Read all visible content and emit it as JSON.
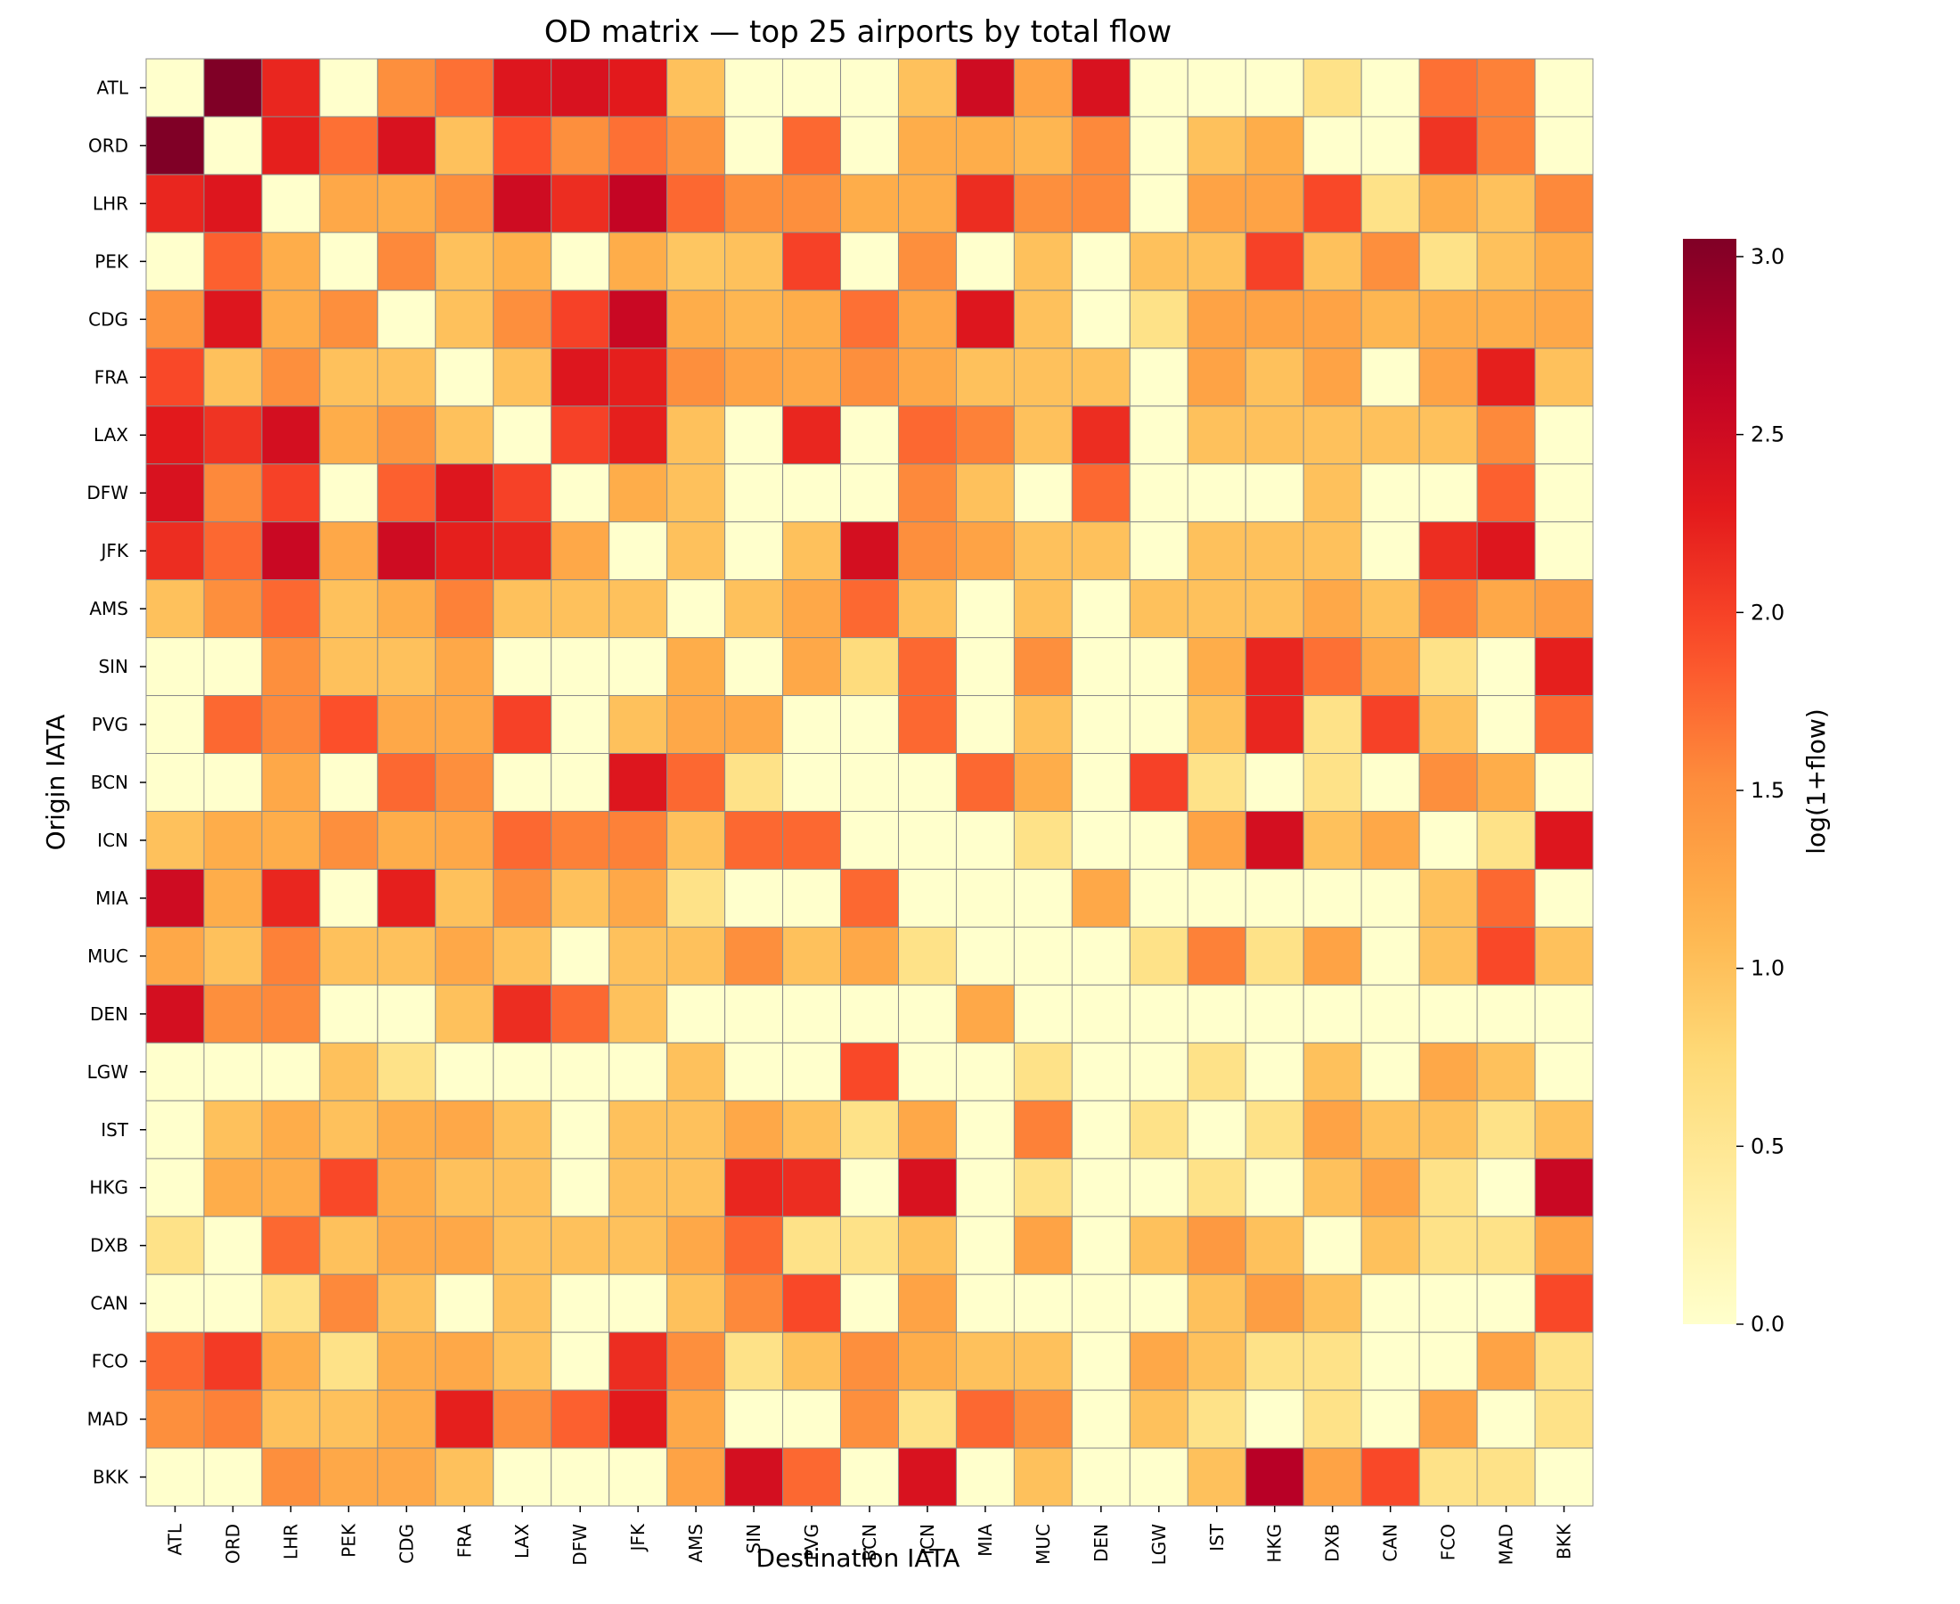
{
  "chart_data": {
    "type": "heatmap",
    "title": "OD matrix — top 25 airports by total flow",
    "xlabel": "Destination IATA",
    "ylabel": "Origin IATA",
    "colorbar": {
      "label": "log(1+flow)",
      "range": [
        0,
        3.05
      ],
      "ticks": [
        "0.0",
        "0.5",
        "1.0",
        "1.5",
        "2.0",
        "2.5",
        "3.0"
      ],
      "colormap": "YlOrRd"
    },
    "x_categories": [
      "ATL",
      "ORD",
      "LHR",
      "PEK",
      "CDG",
      "FRA",
      "LAX",
      "DFW",
      "JFK",
      "AMS",
      "SIN",
      "PVG",
      "BCN",
      "ICN",
      "MIA",
      "MUC",
      "DEN",
      "LGW",
      "IST",
      "HKG",
      "DXB",
      "CAN",
      "FCO",
      "MAD",
      "BKK"
    ],
    "y_categories": [
      "ATL",
      "ORD",
      "LHR",
      "PEK",
      "CDG",
      "FRA",
      "LAX",
      "DFW",
      "JFK",
      "AMS",
      "SIN",
      "PVG",
      "BCN",
      "ICN",
      "MIA",
      "MUC",
      "DEN",
      "LGW",
      "IST",
      "HKG",
      "DXB",
      "CAN",
      "FCO",
      "MAD",
      "BKK"
    ],
    "values": [
      [
        0.0,
        3.05,
        2.2,
        0.0,
        1.5,
        1.7,
        2.35,
        2.4,
        2.3,
        1.0,
        0.0,
        0.0,
        0.0,
        1.0,
        2.5,
        1.3,
        2.4,
        0.0,
        0.0,
        0.0,
        0.6,
        0.0,
        1.7,
        1.6,
        0.0
      ],
      [
        3.05,
        0.0,
        2.25,
        1.7,
        2.4,
        1.0,
        1.9,
        1.5,
        1.7,
        1.45,
        0.0,
        1.75,
        0.0,
        1.2,
        1.2,
        1.1,
        1.55,
        0.0,
        1.0,
        1.2,
        0.0,
        0.0,
        2.1,
        1.6,
        0.0
      ],
      [
        2.2,
        2.35,
        0.0,
        1.25,
        1.2,
        1.5,
        2.5,
        2.15,
        2.6,
        1.75,
        1.5,
        1.5,
        1.2,
        1.2,
        2.15,
        1.5,
        1.55,
        0.0,
        1.3,
        1.3,
        1.95,
        0.6,
        1.2,
        1.0,
        1.55
      ],
      [
        0.0,
        1.8,
        1.2,
        0.0,
        1.55,
        1.0,
        1.15,
        0.0,
        1.2,
        0.95,
        1.0,
        2.0,
        0.0,
        1.5,
        0.0,
        1.0,
        0.0,
        1.0,
        1.0,
        2.0,
        1.0,
        1.5,
        0.6,
        1.0,
        1.2
      ],
      [
        1.45,
        2.35,
        1.2,
        1.5,
        0.0,
        1.0,
        1.5,
        2.0,
        2.55,
        1.2,
        1.1,
        1.2,
        1.7,
        1.25,
        2.35,
        1.0,
        0.0,
        0.6,
        1.3,
        1.3,
        1.3,
        1.1,
        1.2,
        1.2,
        1.25
      ],
      [
        1.95,
        1.0,
        1.5,
        1.0,
        1.0,
        0.0,
        1.0,
        2.35,
        2.25,
        1.5,
        1.3,
        1.25,
        1.5,
        1.25,
        1.0,
        1.0,
        1.0,
        0.0,
        1.3,
        1.0,
        1.3,
        0.0,
        1.3,
        2.25,
        1.0
      ],
      [
        2.3,
        2.1,
        2.45,
        1.2,
        1.45,
        1.0,
        0.0,
        2.0,
        2.25,
        1.0,
        0.0,
        2.2,
        0.0,
        1.75,
        1.6,
        1.0,
        2.15,
        0.0,
        1.0,
        1.0,
        1.0,
        1.0,
        1.0,
        1.55,
        0.0
      ],
      [
        2.4,
        1.55,
        2.0,
        0.0,
        1.8,
        2.35,
        2.0,
        0.0,
        1.2,
        1.0,
        0.0,
        0.0,
        0.0,
        1.55,
        1.0,
        0.0,
        1.75,
        0.0,
        0.0,
        0.0,
        1.0,
        0.0,
        0.0,
        1.8,
        0.0
      ],
      [
        2.15,
        1.75,
        2.55,
        1.25,
        2.5,
        2.25,
        2.2,
        1.25,
        0.0,
        1.0,
        0.0,
        1.0,
        2.45,
        1.5,
        1.3,
        1.0,
        1.0,
        0.0,
        1.0,
        1.0,
        1.0,
        0.0,
        2.15,
        2.35,
        0.0
      ],
      [
        1.0,
        1.5,
        1.75,
        1.0,
        1.2,
        1.6,
        1.0,
        1.0,
        1.0,
        0.0,
        1.0,
        1.25,
        1.75,
        1.0,
        0.0,
        1.0,
        0.0,
        1.0,
        1.0,
        1.0,
        1.25,
        1.0,
        1.6,
        1.25,
        1.35
      ],
      [
        0.0,
        0.0,
        1.5,
        1.0,
        1.0,
        1.25,
        0.0,
        0.0,
        0.0,
        1.2,
        0.0,
        1.25,
        0.7,
        1.75,
        0.0,
        1.5,
        0.0,
        0.0,
        1.2,
        2.2,
        1.7,
        1.25,
        0.6,
        0.0,
        2.25
      ],
      [
        0.0,
        1.75,
        1.55,
        1.9,
        1.25,
        1.25,
        2.0,
        0.0,
        1.0,
        1.25,
        1.25,
        0.0,
        0.0,
        1.75,
        0.0,
        1.0,
        0.0,
        0.0,
        1.0,
        2.2,
        0.6,
        2.0,
        1.0,
        0.0,
        1.75
      ],
      [
        0.0,
        0.0,
        1.25,
        0.0,
        1.75,
        1.5,
        0.0,
        0.0,
        2.35,
        1.75,
        0.6,
        0.0,
        0.0,
        0.0,
        1.75,
        1.2,
        0.0,
        2.0,
        0.6,
        0.0,
        0.6,
        0.0,
        1.5,
        1.2,
        0.0
      ],
      [
        1.0,
        1.2,
        1.2,
        1.5,
        1.2,
        1.25,
        1.75,
        1.6,
        1.6,
        1.0,
        1.75,
        1.75,
        0.0,
        0.0,
        0.0,
        0.6,
        0.0,
        0.0,
        1.3,
        2.45,
        1.0,
        1.25,
        0.0,
        0.6,
        2.35
      ],
      [
        2.5,
        1.2,
        2.2,
        0.0,
        2.25,
        1.0,
        1.5,
        1.0,
        1.25,
        0.6,
        0.0,
        0.0,
        1.75,
        0.0,
        0.0,
        0.0,
        1.25,
        0.0,
        0.0,
        0.0,
        0.0,
        0.0,
        1.0,
        1.75,
        0.0
      ],
      [
        1.25,
        1.0,
        1.6,
        1.0,
        1.0,
        1.25,
        1.0,
        0.0,
        1.0,
        1.0,
        1.5,
        1.0,
        1.25,
        0.6,
        0.0,
        0.0,
        0.0,
        0.6,
        1.6,
        0.6,
        1.3,
        0.0,
        1.0,
        1.95,
        1.0
      ],
      [
        2.45,
        1.5,
        1.55,
        0.0,
        0.0,
        1.0,
        2.15,
        1.75,
        1.0,
        0.0,
        0.0,
        0.0,
        0.0,
        0.0,
        1.25,
        0.0,
        0.0,
        0.0,
        0.0,
        0.0,
        0.0,
        0.0,
        0.0,
        0.0,
        0.0
      ],
      [
        0.0,
        0.0,
        0.0,
        1.0,
        0.6,
        0.0,
        0.0,
        0.0,
        0.0,
        1.0,
        0.0,
        0.0,
        1.95,
        0.0,
        0.0,
        0.6,
        0.0,
        0.0,
        0.6,
        0.0,
        1.0,
        0.0,
        1.25,
        1.0,
        0.0
      ],
      [
        0.0,
        1.0,
        1.2,
        1.0,
        1.2,
        1.25,
        1.0,
        0.0,
        1.0,
        1.0,
        1.25,
        1.0,
        0.6,
        1.25,
        0.0,
        1.6,
        0.0,
        0.6,
        0.0,
        0.6,
        1.3,
        1.0,
        1.0,
        0.6,
        1.0
      ],
      [
        0.0,
        1.2,
        1.2,
        1.95,
        1.2,
        1.0,
        1.0,
        0.0,
        1.0,
        1.0,
        2.2,
        2.15,
        0.0,
        2.4,
        0.0,
        0.6,
        0.0,
        0.0,
        0.6,
        0.0,
        1.0,
        1.3,
        0.6,
        0.0,
        2.55
      ],
      [
        0.6,
        0.0,
        1.75,
        1.0,
        1.25,
        1.25,
        1.0,
        1.0,
        1.0,
        1.25,
        1.75,
        0.6,
        0.6,
        1.0,
        0.0,
        1.3,
        0.0,
        1.0,
        1.4,
        1.0,
        0.0,
        1.0,
        0.6,
        0.6,
        1.3
      ],
      [
        0.0,
        0.0,
        0.6,
        1.55,
        1.0,
        0.0,
        1.0,
        0.0,
        0.0,
        1.0,
        1.55,
        1.95,
        0.0,
        1.3,
        0.0,
        0.0,
        0.0,
        0.0,
        1.0,
        1.35,
        1.0,
        0.0,
        0.0,
        0.0,
        1.95
      ],
      [
        1.75,
        2.05,
        1.2,
        0.6,
        1.2,
        1.25,
        1.0,
        0.0,
        2.15,
        1.5,
        0.6,
        1.0,
        1.5,
        1.2,
        1.0,
        1.0,
        0.0,
        1.25,
        1.0,
        0.6,
        0.6,
        0.0,
        0.0,
        1.3,
        0.6
      ],
      [
        1.5,
        1.6,
        1.0,
        1.0,
        1.2,
        2.25,
        1.5,
        1.8,
        2.3,
        1.25,
        0.0,
        0.0,
        1.5,
        0.6,
        1.75,
        1.5,
        0.0,
        1.0,
        0.6,
        0.0,
        0.6,
        0.0,
        1.3,
        0.0,
        0.6
      ],
      [
        0.0,
        0.0,
        1.5,
        1.25,
        1.25,
        1.0,
        0.0,
        0.0,
        0.0,
        1.3,
        2.45,
        1.75,
        0.0,
        2.4,
        0.0,
        1.0,
        0.0,
        0.0,
        1.0,
        2.7,
        1.3,
        1.95,
        0.6,
        0.6,
        0.0
      ]
    ]
  }
}
